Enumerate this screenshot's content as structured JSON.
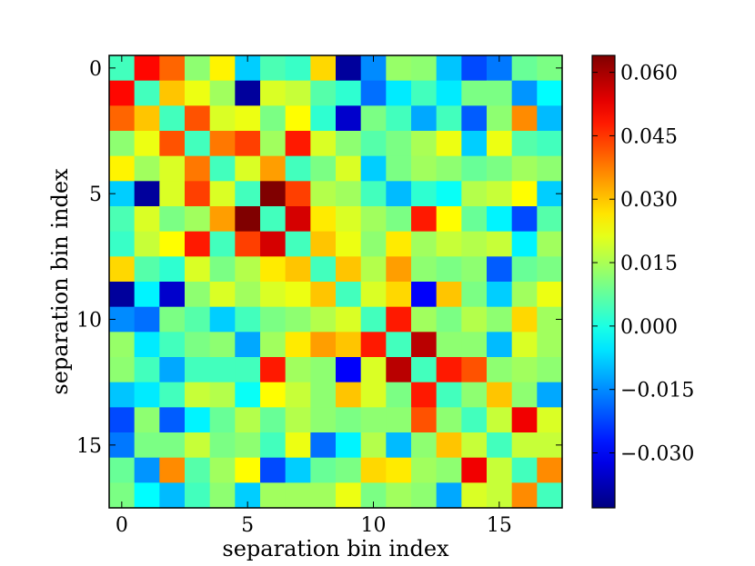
{
  "chart_data": {
    "type": "heatmap",
    "title": "",
    "xlabel": "separation bin index",
    "ylabel": "separation bin index",
    "x_ticks": [
      0,
      5,
      10,
      15
    ],
    "y_ticks": [
      0,
      5,
      10,
      15
    ],
    "x_tick_labels": [
      "0",
      "5",
      "10",
      "15"
    ],
    "y_tick_labels": [
      "0",
      "5",
      "10",
      "15"
    ],
    "n_rows": 18,
    "n_cols": 18,
    "y_axis_inverted": true,
    "colormap": "jet",
    "colorbar": {
      "vmin": -0.043,
      "vmax": 0.064,
      "ticks": [
        -0.03,
        -0.015,
        0.0,
        0.015,
        0.03,
        0.045,
        0.06
      ],
      "tick_labels": [
        "−0.030",
        "−0.015",
        "0.000",
        "0.015",
        "0.030",
        "0.045",
        "0.060"
      ]
    },
    "values": [
      [
        0.004,
        0.05,
        0.04,
        0.012,
        0.025,
        -0.008,
        0.005,
        0.003,
        0.028,
        -0.04,
        -0.015,
        0.013,
        0.012,
        -0.009,
        -0.022,
        -0.017,
        0.008,
        0.01
      ],
      [
        0.05,
        0.004,
        0.03,
        0.022,
        0.014,
        -0.04,
        0.02,
        0.018,
        0.006,
        0.002,
        -0.018,
        -0.005,
        0.004,
        -0.005,
        0.01,
        0.01,
        -0.014,
        -0.003
      ],
      [
        0.04,
        0.03,
        0.004,
        0.042,
        0.02,
        0.022,
        0.01,
        0.024,
        0.002,
        -0.035,
        0.01,
        0.004,
        -0.012,
        0.004,
        -0.02,
        0.012,
        0.036,
        -0.01
      ],
      [
        0.012,
        0.022,
        0.042,
        0.004,
        0.038,
        0.044,
        0.014,
        0.048,
        0.02,
        0.012,
        0.006,
        0.01,
        0.015,
        0.022,
        -0.008,
        0.022,
        0.006,
        0.004
      ],
      [
        0.025,
        0.014,
        0.02,
        0.038,
        0.004,
        0.02,
        0.034,
        0.004,
        0.01,
        0.02,
        -0.008,
        0.01,
        0.014,
        0.012,
        0.008,
        0.01,
        0.014,
        0.012
      ],
      [
        -0.008,
        -0.04,
        0.02,
        0.044,
        0.02,
        0.004,
        0.064,
        0.044,
        0.016,
        0.014,
        0.004,
        -0.01,
        0.002,
        -0.002,
        0.016,
        0.018,
        0.024,
        -0.008
      ],
      [
        0.005,
        0.02,
        0.01,
        0.014,
        0.034,
        0.064,
        0.004,
        0.055,
        0.026,
        0.02,
        0.014,
        0.01,
        0.048,
        0.024,
        0.008,
        -0.004,
        -0.022,
        0.006
      ],
      [
        0.003,
        0.018,
        0.024,
        0.048,
        0.004,
        0.044,
        0.055,
        0.004,
        0.03,
        0.022,
        0.012,
        0.026,
        0.014,
        0.018,
        0.016,
        0.018,
        -0.004,
        0.014
      ],
      [
        0.028,
        0.006,
        0.002,
        0.02,
        0.01,
        0.016,
        0.026,
        0.03,
        0.004,
        0.03,
        0.016,
        0.034,
        0.012,
        0.01,
        0.012,
        -0.02,
        0.008,
        0.01
      ],
      [
        -0.04,
        -0.004,
        -0.035,
        0.012,
        0.02,
        0.014,
        0.02,
        0.022,
        0.03,
        0.004,
        0.02,
        0.028,
        -0.03,
        0.03,
        0.01,
        -0.008,
        0.014,
        0.022
      ],
      [
        -0.015,
        -0.018,
        0.01,
        0.006,
        -0.008,
        0.004,
        0.01,
        0.012,
        0.016,
        0.02,
        0.004,
        0.048,
        0.014,
        0.01,
        0.016,
        0.012,
        0.028,
        0.014
      ],
      [
        0.013,
        -0.005,
        0.004,
        0.01,
        0.012,
        -0.012,
        0.014,
        0.026,
        0.034,
        0.03,
        0.048,
        0.004,
        0.058,
        0.012,
        0.012,
        -0.01,
        0.02,
        0.014
      ],
      [
        0.012,
        0.004,
        -0.012,
        0.004,
        0.004,
        0.004,
        0.048,
        0.014,
        0.012,
        -0.03,
        0.02,
        0.058,
        0.004,
        0.048,
        0.042,
        0.012,
        0.014,
        0.012
      ],
      [
        -0.009,
        -0.005,
        0.004,
        0.018,
        0.016,
        -0.002,
        0.024,
        0.018,
        0.012,
        0.03,
        0.02,
        0.01,
        0.048,
        0.004,
        0.012,
        0.03,
        0.012,
        -0.012
      ],
      [
        -0.022,
        0.012,
        -0.02,
        -0.004,
        0.008,
        0.016,
        0.008,
        0.016,
        0.012,
        0.01,
        0.012,
        0.012,
        0.042,
        0.012,
        0.004,
        0.018,
        0.052,
        0.02
      ],
      [
        -0.017,
        0.01,
        0.01,
        0.018,
        0.01,
        0.012,
        0.004,
        0.022,
        -0.018,
        -0.004,
        0.016,
        -0.01,
        0.012,
        0.03,
        0.018,
        0.004,
        0.018,
        0.018
      ],
      [
        0.008,
        -0.014,
        0.036,
        0.006,
        0.014,
        0.024,
        -0.022,
        -0.008,
        0.008,
        0.01,
        0.028,
        0.026,
        0.014,
        0.012,
        0.052,
        0.018,
        0.004,
        0.036
      ],
      [
        0.01,
        -0.003,
        -0.01,
        0.004,
        0.012,
        -0.008,
        0.014,
        0.014,
        0.014,
        0.022,
        0.01,
        0.014,
        0.012,
        -0.012,
        0.02,
        0.018,
        0.036,
        0.004
      ]
    ]
  }
}
